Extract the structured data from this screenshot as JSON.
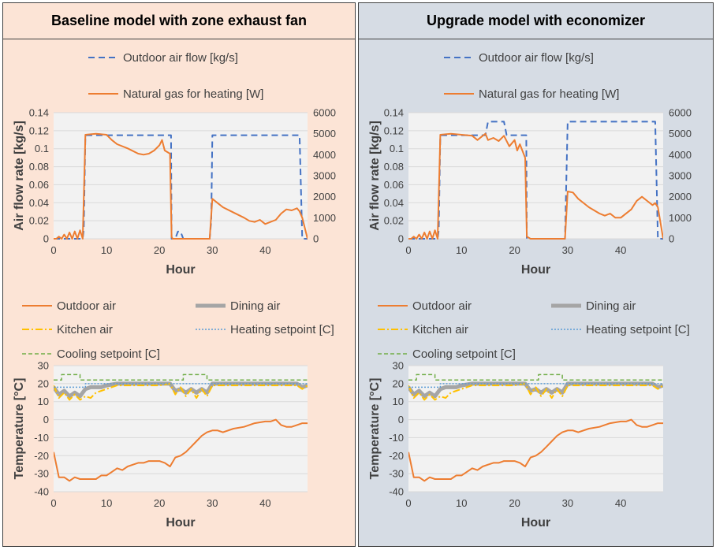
{
  "colors": {
    "left_bg": "#fce4d6",
    "right_bg": "#d6dce4",
    "plot_bg": "#f2f2f2",
    "grid": "#d9d9d9",
    "outdoor_air_flow": "#4472c4",
    "natural_gas": "#ed7d31",
    "outdoor_air": "#ed7d31",
    "dining_air": "#a5a5a5",
    "kitchen_air": "#ffc000",
    "heating_setpoint": "#5b9bd5",
    "cooling_setpoint": "#70ad47"
  },
  "panels": [
    {
      "title": "Baseline model with zone exhaust fan"
    },
    {
      "title": "Upgrade model with economizer"
    }
  ],
  "chart_data": [
    {
      "panel": 0,
      "type": "line",
      "legend": [
        "Outdoor air flow [kg/s]",
        "Natural gas for heating [W]"
      ],
      "xlabel": "Hour",
      "ylabel": "Air flow rate [kg/s]",
      "xlim": [
        0,
        48
      ],
      "ylim": [
        0,
        0.14
      ],
      "y2lim": [
        0,
        6000
      ],
      "xticks": [
        "0",
        "10",
        "20",
        "30",
        "40"
      ],
      "yticks": [
        "0",
        "0.02",
        "0.04",
        "0.06",
        "0.08",
        "0.1",
        "0.12",
        "0.14"
      ],
      "y2ticks": [
        "0",
        "1000",
        "2000",
        "3000",
        "4000",
        "5000",
        "6000"
      ],
      "series": [
        {
          "name": "Outdoor air flow [kg/s]",
          "axis": "left",
          "style": "dashed",
          "x": [
            0,
            5.5,
            5.7,
            6,
            22.2,
            22.3,
            23,
            23.5,
            24,
            24.5,
            29.5,
            29.8,
            30,
            46.5,
            47,
            48
          ],
          "y": [
            0,
            0,
            0.01,
            0.115,
            0.115,
            0,
            0,
            0.008,
            0.008,
            0,
            0,
            0.02,
            0.115,
            0.115,
            0,
            0
          ]
        },
        {
          "name": "Natural gas for heating [W]",
          "axis": "right",
          "style": "solid",
          "x": [
            0,
            0.5,
            1,
            1.5,
            2,
            2.5,
            3,
            3.5,
            4,
            4.5,
            5,
            5.5,
            6,
            8,
            10,
            11,
            12,
            14,
            16,
            17,
            18,
            19,
            20,
            20.5,
            21,
            22,
            22.3,
            22.5,
            23,
            24,
            29.5,
            30,
            31,
            32,
            34,
            36,
            37,
            38,
            39,
            40,
            42,
            43,
            44,
            45,
            46,
            46.5,
            47,
            48
          ],
          "y": [
            0,
            0,
            100,
            0,
            200,
            0,
            300,
            0,
            350,
            0,
            400,
            0,
            4950,
            5000,
            4950,
            4700,
            4500,
            4300,
            4050,
            4000,
            4050,
            4200,
            4450,
            4700,
            4200,
            4050,
            100,
            0,
            0,
            0,
            0,
            1900,
            1700,
            1500,
            1250,
            1000,
            850,
            800,
            900,
            700,
            900,
            1200,
            1400,
            1350,
            1450,
            1300,
            1000,
            0
          ]
        }
      ]
    },
    {
      "panel": 0,
      "type": "line",
      "legend": [
        "Outdoor air",
        "Dining air",
        "Kitchen air",
        "Heating setpoint [C]",
        "Cooling setpoint [C]"
      ],
      "xlabel": "Hour",
      "ylabel": "Temperature [°C]",
      "xlim": [
        0,
        48
      ],
      "ylim": [
        -40,
        30
      ],
      "xticks": [
        "0",
        "10",
        "20",
        "30",
        "40"
      ],
      "yticks": [
        "-40",
        "-30",
        "-20",
        "-10",
        "0",
        "10",
        "20",
        "30"
      ],
      "series": [
        {
          "name": "Outdoor air",
          "style": "solid",
          "x": [
            0,
            1,
            2,
            3,
            4,
            5,
            6,
            7,
            8,
            9,
            10,
            11,
            12,
            13,
            14,
            15,
            16,
            17,
            18,
            19,
            20,
            21,
            22,
            23,
            24,
            25,
            26,
            27,
            28,
            29,
            30,
            31,
            32,
            34,
            36,
            38,
            40,
            41,
            42,
            43,
            44,
            45,
            46,
            47,
            48
          ],
          "y": [
            -18,
            -32,
            -32,
            -34,
            -32,
            -33,
            -33,
            -33,
            -33,
            -31,
            -31,
            -29,
            -27,
            -28,
            -26,
            -25,
            -24,
            -24,
            -23,
            -23,
            -23,
            -24,
            -26,
            -21,
            -20,
            -18,
            -15,
            -12,
            -9,
            -7,
            -6,
            -6,
            -7,
            -5,
            -4,
            -2,
            -1,
            -1,
            0,
            -3,
            -4,
            -4,
            -3,
            -2,
            -2
          ]
        },
        {
          "name": "Dining air",
          "style": "thick",
          "x": [
            0,
            1,
            2,
            3,
            4,
            5,
            6,
            7,
            8,
            9,
            10,
            12,
            14,
            16,
            18,
            20,
            22,
            23,
            24,
            25,
            26,
            27,
            28,
            29,
            30,
            32,
            34,
            36,
            38,
            40,
            42,
            44,
            46,
            47,
            48
          ],
          "y": [
            18,
            14,
            16,
            13,
            15,
            13,
            17,
            18,
            18,
            18,
            19,
            20,
            20,
            20,
            20,
            20,
            20,
            16,
            17,
            15,
            17,
            15,
            17,
            15,
            20,
            20,
            20,
            20,
            20,
            20,
            20,
            20,
            20,
            18,
            19
          ]
        },
        {
          "name": "Kitchen air",
          "style": "dashdot",
          "x": [
            0,
            1,
            2,
            3,
            4,
            5,
            6,
            7,
            8,
            9,
            10,
            12,
            14,
            16,
            18,
            20,
            22,
            23,
            24,
            25,
            26,
            27,
            28,
            29,
            30,
            32,
            34,
            36,
            38,
            40,
            42,
            44,
            46,
            47,
            48
          ],
          "y": [
            19,
            12,
            15,
            11,
            14,
            11,
            13,
            12,
            15,
            16,
            17,
            19,
            19,
            19,
            19,
            19,
            20,
            14,
            18,
            13,
            17,
            12,
            17,
            13,
            19,
            19,
            19,
            19,
            19,
            19,
            19,
            19,
            19,
            17,
            19
          ]
        },
        {
          "name": "Heating setpoint [C]",
          "style": "dotted",
          "x": [
            0,
            6,
            6.01,
            48
          ],
          "y": [
            18,
            18,
            20,
            20
          ]
        },
        {
          "name": "Cooling setpoint [C]",
          "style": "dashed",
          "x": [
            0,
            1.5,
            1.5,
            5,
            5,
            24.5,
            24.5,
            29,
            29,
            48
          ],
          "y": [
            22,
            22,
            25,
            25,
            22,
            22,
            25,
            25,
            22,
            22
          ]
        }
      ]
    },
    {
      "panel": 1,
      "type": "line",
      "legend": [
        "Outdoor air flow [kg/s]",
        "Natural gas for heating [W]"
      ],
      "xlabel": "Hour",
      "ylabel": "Air flow rate [kg/s]",
      "xlim": [
        0,
        48
      ],
      "ylim": [
        0,
        0.14
      ],
      "y2lim": [
        0,
        6000
      ],
      "xticks": [
        "0",
        "10",
        "20",
        "30",
        "40"
      ],
      "yticks": [
        "0",
        "0.02",
        "0.04",
        "0.06",
        "0.08",
        "0.1",
        "0.12",
        "0.14"
      ],
      "y2ticks": [
        "0",
        "1000",
        "2000",
        "3000",
        "4000",
        "5000",
        "6000"
      ],
      "series": [
        {
          "name": "Outdoor air flow [kg/s]",
          "axis": "left",
          "style": "dashed",
          "x": [
            0,
            5.5,
            5.7,
            6,
            14.5,
            15,
            18,
            18.5,
            22.2,
            22.3,
            29.5,
            30,
            46.5,
            47,
            48
          ],
          "y": [
            0,
            0,
            0.01,
            0.115,
            0.115,
            0.13,
            0.13,
            0.115,
            0.115,
            0,
            0,
            0.13,
            0.13,
            0,
            0
          ]
        },
        {
          "name": "Natural gas for heating [W]",
          "axis": "right",
          "style": "solid",
          "x": [
            0,
            0.5,
            1,
            1.5,
            2,
            2.5,
            3,
            3.5,
            4,
            4.5,
            5,
            5.5,
            6,
            8,
            10,
            12,
            13,
            14,
            14.5,
            15,
            16,
            17,
            18,
            19,
            20,
            20.5,
            21,
            22,
            22.3,
            23,
            29.5,
            30,
            31,
            32,
            34,
            36,
            37,
            38,
            39,
            40,
            42,
            43,
            44,
            45,
            46,
            46.5,
            47,
            48
          ],
          "y": [
            0,
            0,
            100,
            0,
            200,
            0,
            300,
            0,
            350,
            0,
            400,
            0,
            4950,
            5000,
            4950,
            4900,
            4700,
            4900,
            5000,
            4700,
            4800,
            4650,
            4900,
            4400,
            4700,
            4200,
            4500,
            3850,
            100,
            0,
            0,
            2250,
            2200,
            1900,
            1500,
            1200,
            1100,
            1200,
            1000,
            1000,
            1400,
            1800,
            2000,
            1800,
            1600,
            1700,
            1500,
            0
          ]
        }
      ]
    },
    {
      "panel": 1,
      "type": "line",
      "legend": [
        "Outdoor air",
        "Dining air",
        "Kitchen air",
        "Heating setpoint [C]",
        "Cooling setpoint [C]"
      ],
      "xlabel": "Hour",
      "ylabel": "Temperature [°C]",
      "xlim": [
        0,
        48
      ],
      "ylim": [
        -40,
        30
      ],
      "xticks": [
        "0",
        "10",
        "20",
        "30",
        "40"
      ],
      "yticks": [
        "-40",
        "-30",
        "-20",
        "-10",
        "0",
        "10",
        "20",
        "30"
      ],
      "series": [
        {
          "name": "Outdoor air",
          "style": "solid",
          "x": [
            0,
            1,
            2,
            3,
            4,
            5,
            6,
            7,
            8,
            9,
            10,
            11,
            12,
            13,
            14,
            15,
            16,
            17,
            18,
            19,
            20,
            21,
            22,
            23,
            24,
            25,
            26,
            27,
            28,
            29,
            30,
            31,
            32,
            34,
            36,
            38,
            40,
            41,
            42,
            43,
            44,
            45,
            46,
            47,
            48
          ],
          "y": [
            -18,
            -32,
            -32,
            -34,
            -32,
            -33,
            -33,
            -33,
            -33,
            -31,
            -31,
            -29,
            -27,
            -28,
            -26,
            -25,
            -24,
            -24,
            -23,
            -23,
            -23,
            -24,
            -26,
            -21,
            -20,
            -18,
            -15,
            -12,
            -9,
            -7,
            -6,
            -6,
            -7,
            -5,
            -4,
            -2,
            -1,
            -1,
            0,
            -3,
            -4,
            -4,
            -3,
            -2,
            -2
          ]
        },
        {
          "name": "Dining air",
          "style": "thick",
          "x": [
            0,
            1,
            2,
            3,
            4,
            5,
            6,
            7,
            8,
            9,
            10,
            12,
            14,
            16,
            18,
            20,
            22,
            23,
            24,
            25,
            26,
            27,
            28,
            29,
            30,
            32,
            34,
            36,
            38,
            40,
            42,
            44,
            46,
            47,
            48
          ],
          "y": [
            18,
            14,
            16,
            13,
            15,
            13,
            17,
            18,
            18,
            18,
            19,
            20,
            20,
            20,
            20,
            20,
            20,
            16,
            17,
            15,
            17,
            15,
            17,
            15,
            20,
            20,
            20,
            20,
            20,
            20,
            20,
            20,
            20,
            18,
            19
          ]
        },
        {
          "name": "Kitchen air",
          "style": "dashdot",
          "x": [
            0,
            1,
            2,
            3,
            4,
            5,
            6,
            7,
            8,
            9,
            10,
            12,
            14,
            16,
            18,
            20,
            22,
            23,
            24,
            25,
            26,
            27,
            28,
            29,
            30,
            32,
            34,
            36,
            38,
            40,
            42,
            44,
            46,
            47,
            48
          ],
          "y": [
            19,
            12,
            15,
            11,
            14,
            11,
            13,
            12,
            15,
            16,
            17,
            19,
            19,
            19,
            19,
            19,
            20,
            14,
            18,
            13,
            17,
            12,
            17,
            13,
            19,
            19,
            19,
            19,
            19,
            19,
            19,
            19,
            19,
            17,
            19
          ]
        },
        {
          "name": "Heating setpoint [C]",
          "style": "dotted",
          "x": [
            0,
            6,
            6.01,
            48
          ],
          "y": [
            18,
            18,
            20,
            20
          ]
        },
        {
          "name": "Cooling setpoint [C]",
          "style": "dashed",
          "x": [
            0,
            1.5,
            1.5,
            5,
            5,
            24.5,
            24.5,
            29,
            29,
            48
          ],
          "y": [
            22,
            22,
            25,
            25,
            22,
            22,
            25,
            25,
            22,
            22
          ]
        }
      ]
    }
  ]
}
